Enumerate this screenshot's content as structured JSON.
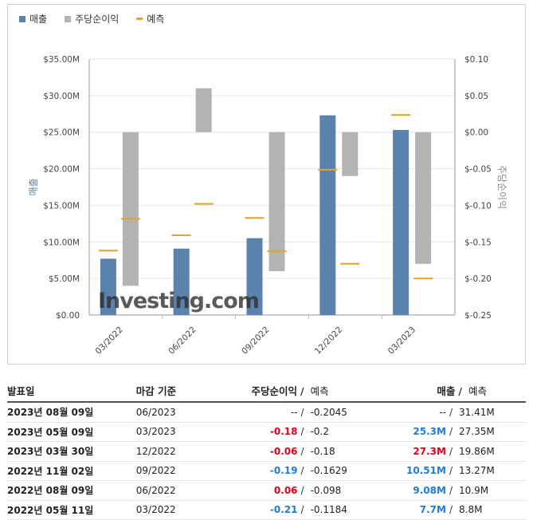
{
  "legend": {
    "revenue": "매출",
    "eps": "주당순이익",
    "forecast": "예측"
  },
  "colors": {
    "revenue": "#5b82ad",
    "eps": "#b3b3b3",
    "forecast": "#e8a224",
    "negative": "#e0021b",
    "positive": "#1f7dd8"
  },
  "chart_data": {
    "type": "bar",
    "categories": [
      "03/2022",
      "06/2022",
      "09/2022",
      "12/2022",
      "03/2023"
    ],
    "revenue": {
      "name": "매출",
      "values": [
        7.7,
        9.08,
        10.51,
        27.3,
        25.3
      ],
      "forecast": [
        8.8,
        10.9,
        13.27,
        19.86,
        27.35
      ]
    },
    "eps": {
      "name": "주당순이익",
      "values": [
        -0.21,
        0.06,
        -0.19,
        -0.06,
        -0.18
      ],
      "forecast": [
        -0.1184,
        -0.098,
        -0.1629,
        -0.18,
        -0.2
      ]
    },
    "ylabel_left": "매출",
    "ylabel_right": "주당순이익",
    "y_left_ticks": [
      "$35.00M",
      "$30.00M",
      "$25.00M",
      "$20.00M",
      "$15.00M",
      "$10.00M",
      "$5.00M",
      "$0.00"
    ],
    "y_right_ticks": [
      "$0.10",
      "$0.05",
      "$0.00",
      "$-0.05",
      "$-0.10",
      "$-0.15",
      "$-0.20",
      "$-0.25"
    ],
    "ylim_left": [
      0,
      35
    ],
    "ylim_right": [
      -0.25,
      0.1
    ],
    "watermark": "Investing.com"
  },
  "table": {
    "headers": {
      "date": "발표일",
      "period": "마감 기준",
      "eps": "주당순이익",
      "eps_forecast": "예측",
      "revenue": "매출",
      "revenue_forecast": "예측",
      "sep": "/"
    },
    "rows": [
      {
        "date": "2023년 08월 09일",
        "period": "06/2023",
        "eps": "--",
        "eps_sign": "none",
        "eps_fc": "-0.2045",
        "rev": "--",
        "rev_sign": "none",
        "rev_fc": "31.41M"
      },
      {
        "date": "2023년 05월 09일",
        "period": "03/2023",
        "eps": "-0.18",
        "eps_sign": "neg",
        "eps_fc": "-0.2",
        "rev": "25.3M",
        "rev_sign": "pos",
        "rev_fc": "27.35M"
      },
      {
        "date": "2023년 03월 30일",
        "period": "12/2022",
        "eps": "-0.06",
        "eps_sign": "neg",
        "eps_fc": "-0.18",
        "rev": "27.3M",
        "rev_sign": "neg",
        "rev_fc": "19.86M"
      },
      {
        "date": "2022년 11월 02일",
        "period": "09/2022",
        "eps": "-0.19",
        "eps_sign": "pos",
        "eps_fc": "-0.1629",
        "rev": "10.51M",
        "rev_sign": "pos",
        "rev_fc": "13.27M"
      },
      {
        "date": "2022년 08월 09일",
        "period": "06/2022",
        "eps": "0.06",
        "eps_sign": "neg",
        "eps_fc": "-0.098",
        "rev": "9.08M",
        "rev_sign": "pos",
        "rev_fc": "10.9M"
      },
      {
        "date": "2022년 05월 11일",
        "period": "03/2022",
        "eps": "-0.21",
        "eps_sign": "pos",
        "eps_fc": "-0.1184",
        "rev": "7.7M",
        "rev_sign": "pos",
        "rev_fc": "8.8M"
      }
    ]
  }
}
